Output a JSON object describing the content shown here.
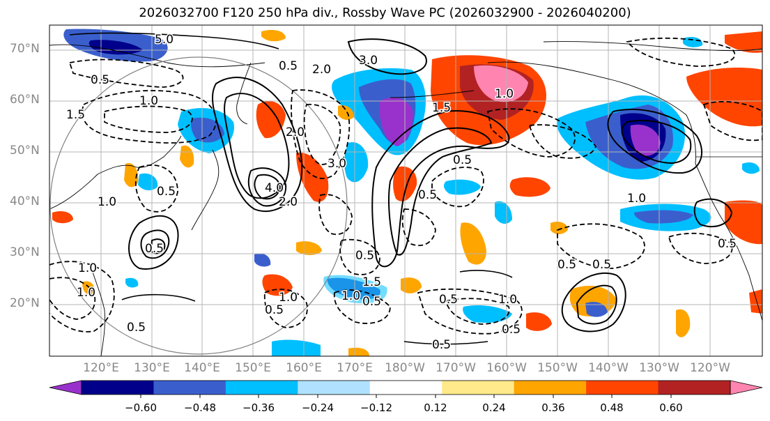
{
  "title": "2026032700 F120 250 hPa div., Rossby Wave PC (2026032900 - 2026040200)",
  "lat_labels": [
    "70°N",
    "60°N",
    "50°N",
    "40°N",
    "30°N",
    "20°N"
  ],
  "lon_labels": [
    "120°E",
    "130°E",
    "140°E",
    "150°E",
    "160°E",
    "170°E",
    "180°W",
    "170°W",
    "160°W",
    "150°W",
    "140°W",
    "130°W",
    "120°W"
  ],
  "colorbar": {
    "colors": [
      "#9932cc",
      "#00008b",
      "#3a5fcd",
      "#00bfff",
      "#b0e2ff",
      "#ffffff",
      "#ffe98a",
      "#ffa500",
      "#ff4500",
      "#b22222",
      "#ff85b0"
    ],
    "tick_labels": [
      "−0.60",
      "−0.48",
      "−0.36",
      "−0.24",
      "−0.12",
      "0.12",
      "0.24",
      "0.36",
      "0.48",
      "0.60"
    ]
  },
  "contour_labels": [
    "5.0",
    "3.0",
    "2.0",
    "1.5",
    "0.5",
    "0.5",
    "1.0",
    "1.5",
    "1.0",
    "4.0",
    "3.0",
    "2.0",
    "0.5",
    "0.5",
    "2.0",
    "1.0",
    "0.5",
    "0.5",
    "1.0",
    "1.0",
    "0.5",
    "1.0",
    "0.5",
    "1.0",
    "0.5",
    "0.5",
    "1.0",
    "0.5",
    "0.5",
    "0.5",
    "0.5",
    "1.5",
    "0.5",
    "1.0",
    "0.5"
  ]
}
